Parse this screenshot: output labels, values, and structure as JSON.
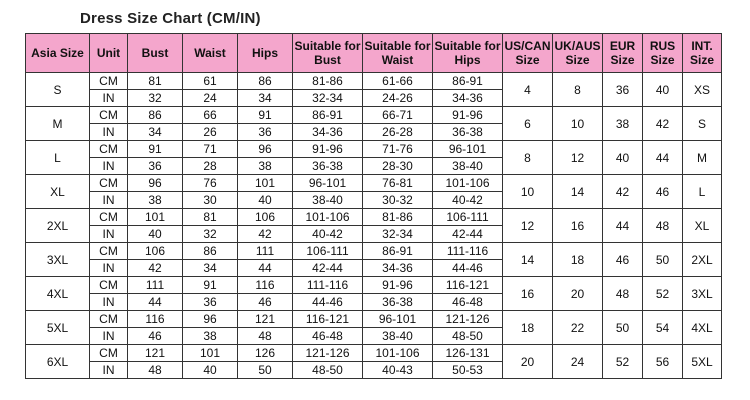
{
  "title": "Dress Size Chart (CM/IN)",
  "colors": {
    "header_bg": "#f4a6cc",
    "border": "#333333"
  },
  "headers": [
    "Asia Size",
    "Unit",
    "Bust",
    "Waist",
    "Hips",
    "Suitable for Bust",
    "Suitable for Waist",
    "Suitable for Hips",
    "US/CAN Size",
    "UK/AUS Size",
    "EUR Size",
    "RUS Size",
    "INT. Size"
  ],
  "rows": [
    {
      "asia": "S",
      "cm": [
        "CM",
        "81",
        "61",
        "86",
        "81-86",
        "61-66",
        "86-91"
      ],
      "in": [
        "IN",
        "32",
        "24",
        "34",
        "32-34",
        "24-26",
        "34-36"
      ],
      "us": "4",
      "uk": "8",
      "eur": "36",
      "rus": "40",
      "int": "XS"
    },
    {
      "asia": "M",
      "cm": [
        "CM",
        "86",
        "66",
        "91",
        "86-91",
        "66-71",
        "91-96"
      ],
      "in": [
        "IN",
        "34",
        "26",
        "36",
        "34-36",
        "26-28",
        "36-38"
      ],
      "us": "6",
      "uk": "10",
      "eur": "38",
      "rus": "42",
      "int": "S"
    },
    {
      "asia": "L",
      "cm": [
        "CM",
        "91",
        "71",
        "96",
        "91-96",
        "71-76",
        "96-101"
      ],
      "in": [
        "IN",
        "36",
        "28",
        "38",
        "36-38",
        "28-30",
        "38-40"
      ],
      "us": "8",
      "uk": "12",
      "eur": "40",
      "rus": "44",
      "int": "M"
    },
    {
      "asia": "XL",
      "cm": [
        "CM",
        "96",
        "76",
        "101",
        "96-101",
        "76-81",
        "101-106"
      ],
      "in": [
        "IN",
        "38",
        "30",
        "40",
        "38-40",
        "30-32",
        "40-42"
      ],
      "us": "10",
      "uk": "14",
      "eur": "42",
      "rus": "46",
      "int": "L"
    },
    {
      "asia": "2XL",
      "cm": [
        "CM",
        "101",
        "81",
        "106",
        "101-106",
        "81-86",
        "106-111"
      ],
      "in": [
        "IN",
        "40",
        "32",
        "42",
        "40-42",
        "32-34",
        "42-44"
      ],
      "us": "12",
      "uk": "16",
      "eur": "44",
      "rus": "48",
      "int": "XL"
    },
    {
      "asia": "3XL",
      "cm": [
        "CM",
        "106",
        "86",
        "111",
        "106-111",
        "86-91",
        "111-116"
      ],
      "in": [
        "IN",
        "42",
        "34",
        "44",
        "42-44",
        "34-36",
        "44-46"
      ],
      "us": "14",
      "uk": "18",
      "eur": "46",
      "rus": "50",
      "int": "2XL"
    },
    {
      "asia": "4XL",
      "cm": [
        "CM",
        "111",
        "91",
        "116",
        "111-116",
        "91-96",
        "116-121"
      ],
      "in": [
        "IN",
        "44",
        "36",
        "46",
        "44-46",
        "36-38",
        "46-48"
      ],
      "us": "16",
      "uk": "20",
      "eur": "48",
      "rus": "52",
      "int": "3XL"
    },
    {
      "asia": "5XL",
      "cm": [
        "CM",
        "116",
        "96",
        "121",
        "116-121",
        "96-101",
        "121-126"
      ],
      "in": [
        "IN",
        "46",
        "38",
        "48",
        "46-48",
        "38-40",
        "48-50"
      ],
      "us": "18",
      "uk": "22",
      "eur": "50",
      "rus": "54",
      "int": "4XL"
    },
    {
      "asia": "6XL",
      "cm": [
        "CM",
        "121",
        "101",
        "126",
        "121-126",
        "101-106",
        "126-131"
      ],
      "in": [
        "IN",
        "48",
        "40",
        "50",
        "48-50",
        "40-43",
        "50-53"
      ],
      "us": "20",
      "uk": "24",
      "eur": "52",
      "rus": "56",
      "int": "5XL"
    }
  ]
}
